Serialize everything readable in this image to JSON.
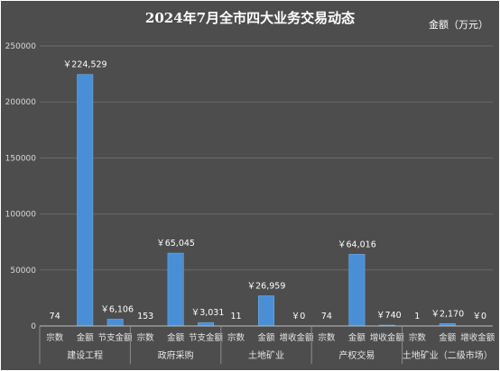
{
  "chart_data": {
    "type": "bar",
    "title": "2024年7月全市四大业务交易动态",
    "unit_label": "金额（万元）",
    "ylim": [
      0,
      250000
    ],
    "yticks": [
      0,
      50000,
      100000,
      150000,
      200000,
      250000
    ],
    "ytick_labels": [
      "0",
      "50000",
      "100000",
      "150000",
      "200000",
      "250000"
    ],
    "grid": true,
    "colors": {
      "background": "#4d4d4d",
      "bar": "#4a8fd6",
      "grid": "#6a6a6a",
      "text": "#ffffff"
    },
    "groups": [
      {
        "name": "建设工程",
        "categories": [
          "宗数",
          "金额",
          "节支金额"
        ],
        "values": [
          74,
          224529,
          6106
        ],
        "labels": [
          "74",
          "￥224,529",
          "￥6,106"
        ]
      },
      {
        "name": "政府采购",
        "categories": [
          "宗数",
          "金额",
          "节支金额"
        ],
        "values": [
          153,
          65045,
          3031
        ],
        "labels": [
          "153",
          "￥65,045",
          "￥3,031"
        ]
      },
      {
        "name": "土地矿业",
        "categories": [
          "宗数",
          "金额",
          "增收金额"
        ],
        "values": [
          11,
          26959,
          0
        ],
        "labels": [
          "11",
          "￥26,959",
          "￥0"
        ]
      },
      {
        "name": "产权交易",
        "categories": [
          "宗数",
          "金额",
          "增收金额"
        ],
        "values": [
          74,
          64016,
          740
        ],
        "labels": [
          "74",
          "￥64,016",
          "￥740"
        ]
      },
      {
        "name": "土地矿业（二级市场）",
        "categories": [
          "宗数",
          "金额",
          "增收金额"
        ],
        "values": [
          1,
          2170,
          0
        ],
        "labels": [
          "1",
          "￥2,170",
          "￥0"
        ]
      }
    ]
  }
}
